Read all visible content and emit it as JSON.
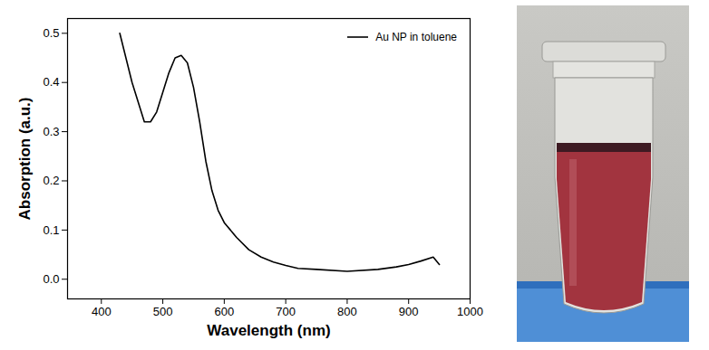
{
  "chart_data": {
    "type": "line",
    "xlabel": "Wavelength (nm)",
    "ylabel": "Absorption (a.u.)",
    "x": [
      430,
      450,
      470,
      480,
      490,
      500,
      510,
      520,
      530,
      540,
      550,
      560,
      570,
      580,
      590,
      600,
      620,
      640,
      660,
      680,
      700,
      720,
      750,
      800,
      850,
      880,
      900,
      920,
      940,
      950
    ],
    "series": [
      {
        "name": "Au NP in toluene",
        "color": "#000000",
        "values": [
          0.5,
          0.4,
          0.32,
          0.32,
          0.34,
          0.38,
          0.42,
          0.45,
          0.455,
          0.44,
          0.39,
          0.32,
          0.24,
          0.18,
          0.14,
          0.115,
          0.085,
          0.06,
          0.045,
          0.035,
          0.028,
          0.022,
          0.02,
          0.016,
          0.02,
          0.025,
          0.03,
          0.037,
          0.045,
          0.03
        ]
      }
    ],
    "xlim": [
      345,
      1000
    ],
    "xticks": [
      400,
      500,
      600,
      700,
      800,
      900,
      1000
    ],
    "ylim": [
      -0.04,
      0.53
    ],
    "yticks": [
      {
        "value": 0,
        "label": "0.0"
      },
      0.1,
      0.2,
      0.3,
      0.4,
      0.5
    ],
    "legend": "top-right",
    "grid": false
  }
}
